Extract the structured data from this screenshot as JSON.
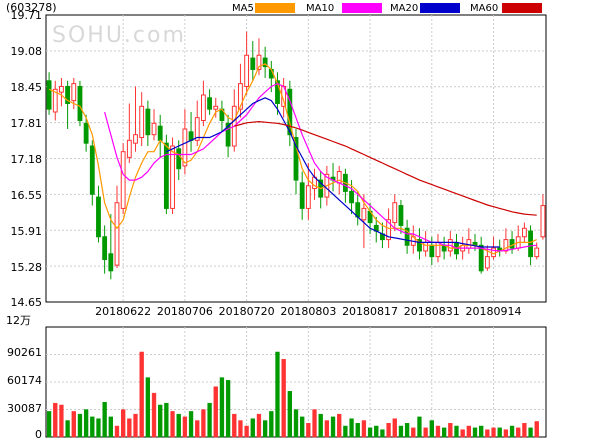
{
  "chart_data": [
    {
      "type": "candlestick",
      "stock_code": "(603278)",
      "watermark": "SOHU.com",
      "legend": [
        {
          "name": "MA5",
          "color": "#ff9900"
        },
        {
          "name": "MA10",
          "color": "#ff00ff"
        },
        {
          "name": "MA20",
          "color": "#0000cc"
        },
        {
          "name": "MA60",
          "color": "#cc0000"
        }
      ],
      "ylim": [
        14.65,
        19.71
      ],
      "y_ticks": [
        "19.71",
        "19.08",
        "18.45",
        "17.81",
        "17.18",
        "16.55",
        "15.91",
        "15.28",
        "14.65"
      ],
      "x_ticks": [
        {
          "label": "20180622",
          "index": 12
        },
        {
          "label": "20180706",
          "index": 22
        },
        {
          "label": "20180720",
          "index": 32
        },
        {
          "label": "20180803",
          "index": 42
        },
        {
          "label": "20180817",
          "index": 52
        },
        {
          "label": "20180831",
          "index": 62
        },
        {
          "label": "20180914",
          "index": 72
        }
      ],
      "up_color": "#ff3333",
      "down_color": "#009900",
      "candles": [
        [
          18.55,
          18.05,
          18.7,
          17.95
        ],
        [
          18.0,
          18.4,
          18.55,
          17.85
        ],
        [
          18.35,
          18.45,
          18.6,
          18.1
        ],
        [
          18.45,
          18.15,
          18.55,
          17.7
        ],
        [
          18.2,
          18.5,
          18.6,
          18.05
        ],
        [
          18.45,
          17.85,
          18.55,
          17.75
        ],
        [
          17.8,
          17.45,
          17.95,
          17.3
        ],
        [
          17.4,
          16.55,
          17.5,
          16.35
        ],
        [
          16.5,
          15.8,
          16.7,
          15.7
        ],
        [
          15.8,
          15.4,
          16.0,
          15.15
        ],
        [
          15.5,
          15.2,
          16.2,
          15.05
        ],
        [
          15.3,
          16.4,
          16.7,
          15.25
        ],
        [
          16.3,
          17.3,
          17.45,
          16.2
        ],
        [
          17.2,
          17.5,
          18.15,
          17.1
        ],
        [
          17.45,
          17.6,
          18.45,
          17.3
        ],
        [
          17.55,
          18.1,
          18.35,
          17.4
        ],
        [
          18.05,
          17.6,
          18.2,
          17.4
        ],
        [
          17.6,
          17.8,
          18.05,
          17.5
        ],
        [
          17.75,
          17.5,
          17.95,
          17.2
        ],
        [
          17.45,
          16.3,
          17.6,
          16.2
        ],
        [
          16.3,
          17.4,
          17.55,
          16.2
        ],
        [
          17.35,
          17.0,
          17.5,
          16.8
        ],
        [
          17.05,
          17.7,
          18.05,
          16.9
        ],
        [
          17.65,
          17.5,
          18.0,
          17.3
        ],
        [
          17.5,
          17.9,
          18.2,
          17.4
        ],
        [
          17.85,
          18.3,
          18.55,
          17.75
        ],
        [
          18.25,
          18.05,
          18.4,
          17.95
        ],
        [
          18.05,
          18.1,
          18.25,
          17.9
        ],
        [
          18.05,
          17.85,
          18.2,
          17.65
        ],
        [
          17.8,
          17.4,
          17.95,
          17.2
        ],
        [
          17.4,
          18.1,
          18.4,
          17.3
        ],
        [
          18.05,
          18.5,
          18.85,
          17.9
        ],
        [
          18.45,
          19.0,
          19.42,
          18.3
        ],
        [
          18.95,
          18.75,
          19.25,
          18.55
        ],
        [
          18.75,
          19.0,
          19.3,
          18.65
        ],
        [
          18.95,
          18.8,
          19.15,
          18.6
        ],
        [
          18.75,
          18.6,
          18.9,
          18.35
        ],
        [
          18.55,
          18.15,
          18.7,
          17.95
        ],
        [
          18.1,
          18.45,
          18.6,
          17.9
        ],
        [
          18.4,
          17.6,
          18.55,
          17.4
        ],
        [
          17.55,
          16.8,
          17.7,
          16.55
        ],
        [
          16.75,
          16.3,
          16.95,
          16.1
        ],
        [
          16.3,
          16.7,
          17.1,
          16.1
        ],
        [
          16.65,
          16.85,
          17.0,
          16.45
        ],
        [
          16.8,
          16.5,
          16.95,
          16.3
        ],
        [
          16.5,
          16.9,
          17.05,
          16.35
        ],
        [
          16.85,
          16.8,
          17.1,
          16.6
        ],
        [
          16.75,
          16.95,
          17.05,
          16.55
        ],
        [
          16.9,
          16.6,
          17.0,
          16.4
        ],
        [
          16.6,
          16.4,
          16.8,
          16.2
        ],
        [
          16.4,
          16.15,
          16.6,
          16.0
        ],
        [
          16.1,
          16.3,
          16.55,
          15.6
        ],
        [
          16.25,
          16.05,
          16.4,
          15.85
        ],
        [
          16.0,
          15.9,
          16.15,
          15.7
        ],
        [
          15.85,
          15.75,
          16.05,
          15.6
        ],
        [
          15.75,
          16.1,
          16.3,
          15.6
        ],
        [
          16.05,
          16.4,
          16.55,
          15.9
        ],
        [
          16.35,
          16.0,
          16.45,
          15.85
        ],
        [
          15.95,
          15.65,
          16.1,
          15.5
        ],
        [
          15.65,
          15.8,
          16.0,
          15.5
        ],
        [
          15.75,
          15.55,
          15.95,
          15.4
        ],
        [
          15.55,
          15.7,
          15.9,
          15.45
        ],
        [
          15.65,
          15.45,
          15.8,
          15.3
        ],
        [
          15.45,
          15.7,
          15.85,
          15.35
        ],
        [
          15.65,
          15.55,
          15.8,
          15.4
        ],
        [
          15.55,
          15.75,
          15.9,
          15.45
        ],
        [
          15.7,
          15.5,
          15.85,
          15.4
        ],
        [
          15.55,
          15.65,
          15.8,
          15.4
        ],
        [
          15.6,
          15.75,
          15.95,
          15.5
        ],
        [
          15.7,
          15.65,
          15.85,
          15.55
        ],
        [
          15.65,
          15.2,
          15.8,
          15.15
        ],
        [
          15.25,
          15.45,
          15.65,
          15.2
        ],
        [
          15.45,
          15.6,
          15.8,
          15.4
        ],
        [
          15.6,
          15.55,
          15.75,
          15.45
        ],
        [
          15.55,
          15.75,
          15.95,
          15.5
        ],
        [
          15.75,
          15.6,
          15.9,
          15.5
        ],
        [
          15.6,
          15.8,
          16.0,
          15.55
        ],
        [
          15.8,
          15.95,
          16.05,
          15.7
        ],
        [
          15.9,
          15.45,
          16.0,
          15.3
        ],
        [
          15.45,
          15.6,
          15.7,
          15.4
        ],
        [
          15.8,
          16.35,
          16.55,
          15.75
        ]
      ],
      "ma5": [
        18.4,
        18.35,
        18.3,
        18.2,
        18.15,
        18.1,
        17.9,
        17.6,
        17.05,
        16.4,
        16.1,
        15.95,
        16.1,
        16.5,
        16.85,
        17.1,
        17.3,
        17.3,
        17.5,
        17.4,
        17.3,
        17.25,
        17.1,
        17.15,
        17.3,
        17.55,
        17.8,
        18.0,
        18.05,
        17.9,
        17.85,
        18.1,
        18.35,
        18.55,
        18.8,
        18.85,
        18.75,
        18.5,
        18.2,
        17.8,
        17.4,
        17.0,
        16.8,
        16.7,
        16.65,
        16.7,
        16.75,
        16.8,
        16.75,
        16.7,
        16.6,
        16.4,
        16.25,
        16.1,
        16.0,
        15.95,
        15.95,
        15.95,
        15.9,
        15.8,
        15.7,
        15.65,
        15.65,
        15.65,
        15.65,
        15.6,
        15.6,
        15.65,
        15.65,
        15.65,
        15.6,
        15.55,
        15.5,
        15.55,
        15.6,
        15.65,
        15.7,
        15.7,
        15.7,
        15.75
      ],
      "ma10": [
        null,
        null,
        null,
        null,
        null,
        null,
        null,
        null,
        null,
        18.0,
        17.6,
        17.2,
        16.9,
        16.8,
        16.8,
        16.85,
        16.95,
        17.1,
        17.2,
        17.25,
        17.25,
        17.25,
        17.25,
        17.25,
        17.3,
        17.35,
        17.45,
        17.55,
        17.65,
        17.7,
        17.75,
        17.85,
        17.95,
        18.1,
        18.25,
        18.35,
        18.45,
        18.5,
        18.45,
        18.2,
        17.9,
        17.6,
        17.35,
        17.1,
        16.95,
        16.85,
        16.8,
        16.75,
        16.7,
        16.65,
        16.55,
        16.45,
        16.35,
        16.25,
        16.15,
        16.05,
        15.95,
        15.9,
        15.85,
        15.85,
        15.8,
        15.75,
        15.7,
        15.7,
        15.65,
        15.65,
        15.6,
        15.6,
        15.6,
        15.6,
        15.6,
        15.58,
        15.56,
        15.55,
        15.56,
        15.58,
        15.6,
        15.62,
        15.64,
        15.65
      ],
      "ma20": [
        null,
        null,
        null,
        null,
        null,
        null,
        null,
        null,
        null,
        null,
        null,
        null,
        null,
        null,
        null,
        null,
        null,
        null,
        null,
        17.3,
        17.35,
        17.4,
        17.45,
        17.5,
        17.55,
        17.55,
        17.55,
        17.6,
        17.65,
        17.75,
        17.85,
        17.95,
        18.05,
        18.15,
        18.2,
        18.25,
        18.2,
        18.05,
        17.85,
        17.65,
        17.4,
        17.2,
        17.0,
        16.85,
        16.75,
        16.65,
        16.55,
        16.45,
        16.35,
        16.25,
        16.15,
        16.05,
        15.95,
        15.9,
        15.85,
        15.8,
        15.78,
        15.76,
        15.74,
        15.72,
        15.7,
        15.7,
        15.7,
        15.7,
        15.7,
        15.7,
        15.7,
        15.68,
        15.66,
        15.64,
        15.62,
        15.62,
        15.62,
        15.62
      ],
      "ma60": [
        null,
        null,
        null,
        null,
        null,
        null,
        null,
        null,
        null,
        null,
        null,
        null,
        null,
        null,
        null,
        null,
        null,
        null,
        null,
        null,
        null,
        null,
        null,
        null,
        null,
        null,
        null,
        null,
        null,
        null,
        17.75,
        17.78,
        17.81,
        17.82,
        17.83,
        17.82,
        17.81,
        17.8,
        17.78,
        17.75,
        17.72,
        17.68,
        17.64,
        17.6,
        17.56,
        17.52,
        17.48,
        17.44,
        17.4,
        17.35,
        17.3,
        17.25,
        17.2,
        17.15,
        17.1,
        17.05,
        17.0,
        16.95,
        16.9,
        16.85,
        16.8,
        16.76,
        16.72,
        16.68,
        16.64,
        16.6,
        16.56,
        16.52,
        16.48,
        16.44,
        16.4,
        16.36,
        16.33,
        16.3,
        16.27,
        16.24,
        16.22,
        16.2,
        16.19,
        16.18
      ]
    },
    {
      "type": "bar",
      "unit_label": "12万",
      "ylim": [
        0,
        120348
      ],
      "y_ticks": [
        "90261",
        "60174",
        "30087",
        "0"
      ],
      "values": [
        28000,
        37000,
        35000,
        18000,
        28000,
        25000,
        30000,
        22000,
        20000,
        38000,
        22000,
        12000,
        30000,
        20000,
        25000,
        93000,
        65000,
        48000,
        35000,
        37000,
        28000,
        25000,
        22000,
        28000,
        18000,
        30000,
        37000,
        55000,
        65000,
        62000,
        25000,
        18000,
        12000,
        20000,
        25000,
        18000,
        28000,
        93000,
        85000,
        50000,
        30000,
        22000,
        15000,
        30000,
        25000,
        18000,
        22000,
        25000,
        12000,
        20000,
        15000,
        18000,
        10000,
        12000,
        8000,
        15000,
        20000,
        12000,
        15000,
        10000,
        22000,
        10000,
        18000,
        12000,
        10000,
        15000,
        12000,
        8000,
        12000,
        10000,
        12000,
        8000,
        10000,
        10000,
        8000,
        12000,
        10000,
        15000,
        10000,
        17000
      ]
    }
  ]
}
